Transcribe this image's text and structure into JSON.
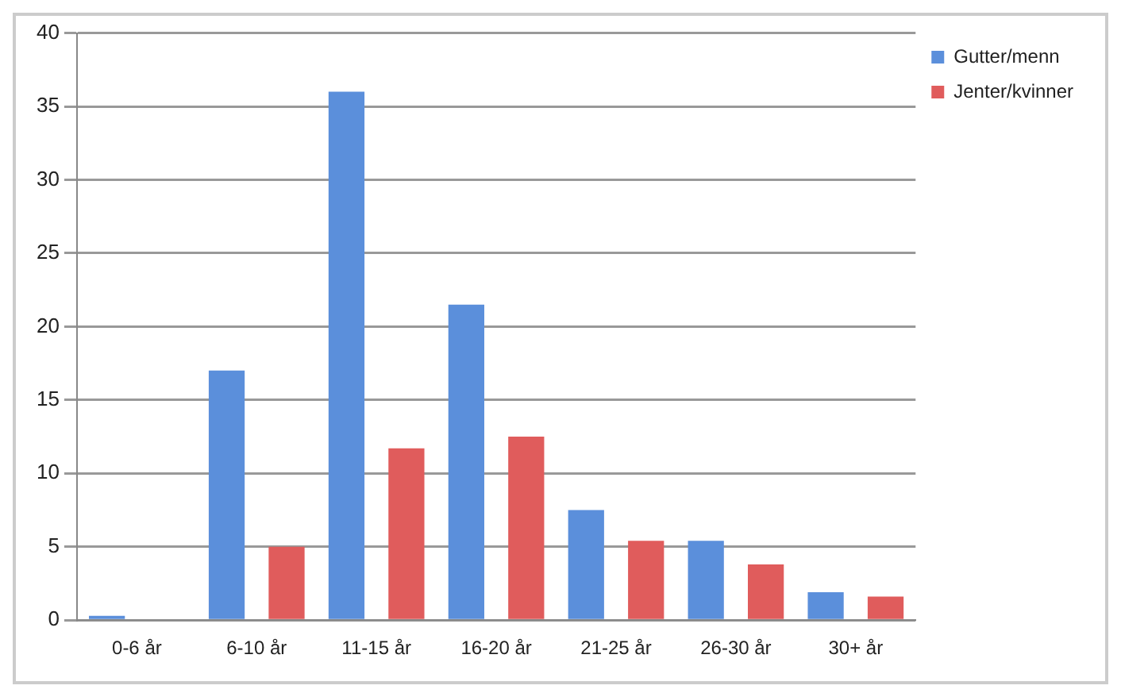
{
  "chart_data": {
    "type": "bar",
    "categories": [
      "0-6 år",
      "6-10 år",
      "11-15 år",
      "16-20 år",
      "21-25 år",
      "26-30 år",
      "30+ år"
    ],
    "series": [
      {
        "name": "Gutter/menn",
        "color": "#5b8fdb",
        "values": [
          0.3,
          17,
          36,
          21.5,
          7.5,
          5.4,
          1.9
        ]
      },
      {
        "name": "Jenter/kvinner",
        "color": "#e05c5c",
        "values": [
          0,
          5,
          11.7,
          12.5,
          5.4,
          3.8,
          1.6
        ]
      }
    ],
    "ylim": [
      0,
      40
    ],
    "yticks": [
      0,
      5,
      10,
      15,
      20,
      25,
      30,
      35,
      40
    ],
    "grid": "y",
    "legend": "top right"
  }
}
